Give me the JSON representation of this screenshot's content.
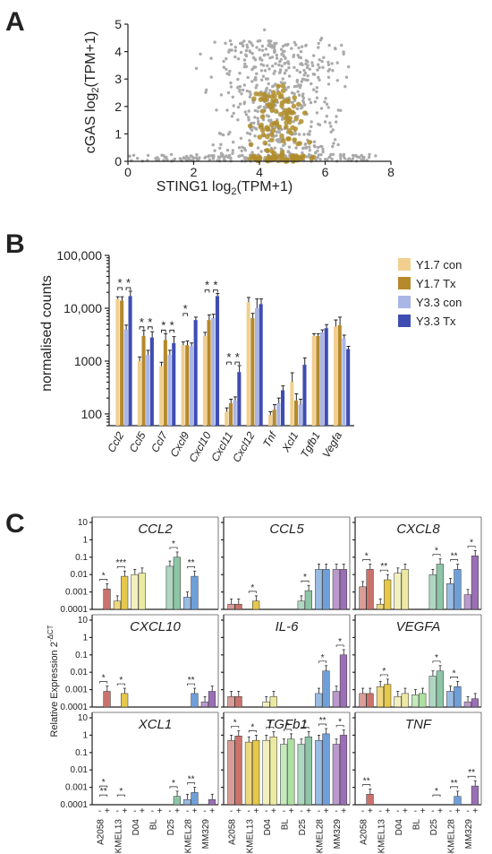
{
  "chart_data": [
    {
      "panel": "A",
      "type": "scatter",
      "xlabel_main": "STING1 log",
      "xlabel_sub": "2",
      "xlabel_end": "(TPM+1)",
      "ylabel_main": "cGAS log",
      "ylabel_sub": "2",
      "ylabel_end": "(TPM+1)",
      "xlim": [
        0,
        8
      ],
      "ylim": [
        0,
        5
      ],
      "xticks": [
        "0",
        "2",
        "4",
        "6",
        "8"
      ],
      "yticks": [
        "0",
        "1",
        "2",
        "3",
        "4",
        "5"
      ],
      "colors": {
        "background": "#aaaaaa",
        "highlight": "#b08d2a"
      },
      "grey_count": 700,
      "gold_count": 140
    },
    {
      "panel": "B",
      "type": "bar",
      "ylabel": "normalised counts",
      "yscale": "log",
      "ylim": [
        60,
        100000
      ],
      "yticks": [
        "100",
        "1000",
        "10,000",
        "100,000"
      ],
      "ytick_values": [
        100,
        1000,
        10000,
        100000
      ],
      "categories": [
        "Ccl2",
        "Ccl5",
        "Ccl7",
        "Cxcl9",
        "Cxcl10",
        "Cxcl11",
        "Cxcl12",
        "Tnf",
        "Xcl1",
        "Tgfb1",
        "Vegfa"
      ],
      "series": [
        {
          "name": "Y1.7 con",
          "color": "#f1cf8f",
          "values": [
            15000,
            1000,
            800,
            2000,
            3000,
            110,
            13000,
            95,
            400,
            3000,
            4500
          ],
          "errors": [
            1500,
            200,
            150,
            300,
            500,
            20,
            3000,
            15,
            200,
            300,
            1500
          ]
        },
        {
          "name": "Y1.7 Tx",
          "color": "#b5892c",
          "values": [
            14000,
            3000,
            2500,
            2000,
            6000,
            160,
            6500,
            120,
            180,
            3000,
            4800
          ],
          "errors": [
            2500,
            800,
            800,
            400,
            1500,
            30,
            1500,
            30,
            60,
            300,
            2000
          ]
        },
        {
          "name": "Y3.3 con",
          "color": "#a9b5e6",
          "values": [
            4000,
            1300,
            1300,
            1900,
            6500,
            180,
            10000,
            160,
            150,
            3500,
            2700
          ],
          "errors": [
            800,
            300,
            300,
            300,
            1200,
            30,
            5000,
            40,
            40,
            400,
            400
          ]
        },
        {
          "name": "Y3.3 Tx",
          "color": "#3f4db3",
          "values": [
            17000,
            2800,
            2200,
            6000,
            17000,
            620,
            12000,
            280,
            850,
            4200,
            1700
          ],
          "errors": [
            4000,
            800,
            700,
            800,
            2000,
            200,
            3000,
            60,
            300,
            700,
            200
          ]
        }
      ],
      "significance": [
        {
          "category": "Ccl2",
          "pairs": [
            "*",
            "*"
          ]
        },
        {
          "category": "Ccl5",
          "pairs": [
            "*",
            "*"
          ]
        },
        {
          "category": "Ccl7",
          "pairs": [
            "*",
            "*"
          ]
        },
        {
          "category": "Cxcl9",
          "pairs": [
            "*"
          ]
        },
        {
          "category": "Cxcl10",
          "pairs": [
            "*",
            "*"
          ]
        },
        {
          "category": "Cxcl11",
          "pairs": [
            "*",
            "*"
          ]
        }
      ]
    },
    {
      "panel": "C",
      "type": "bar",
      "ylabel": "Relative Expression 2",
      "ylabel_sup": "-ΔCT",
      "yscale": "log",
      "ylim": [
        0.0001,
        10
      ],
      "yticks": [
        "10",
        "1",
        "0.1",
        "0.01",
        "0.001",
        "0.0001"
      ],
      "ytick_values": [
        10,
        1,
        0.1,
        0.01,
        0.001,
        0.0001
      ],
      "xtick_signs": [
        "-",
        "+"
      ],
      "cell_lines": [
        "A2058",
        "SKMEL13",
        "D04",
        "BL",
        "D25",
        "SKMEL28",
        "MM329"
      ],
      "cell_colors": [
        "#c9736c",
        "#e6c84a",
        "#ece9a2",
        "#aee0a2",
        "#8dc6a6",
        "#6f9fd8",
        "#9b6fb5"
      ],
      "genes": [
        {
          "name": "CCL2",
          "minus": [
            0.0001,
            0.0003,
            0.01,
            0.0001,
            0.03,
            0.0005,
            0.0001
          ],
          "plus": [
            0.0015,
            0.008,
            0.012,
            0.0001,
            0.1,
            0.008,
            0.0001
          ],
          "stars": [
            {
              "pair": 0,
              "label": "*"
            },
            {
              "pair": 1,
              "label": "***"
            },
            {
              "pair": 4,
              "label": "*"
            },
            {
              "pair": 5,
              "label": "**"
            }
          ]
        },
        {
          "name": "CCL5",
          "minus": [
            0.0002,
            0.0001,
            0.0001,
            0.0001,
            0.0003,
            0.02,
            0.02
          ],
          "plus": [
            0.0002,
            0.0003,
            0.0001,
            0.0001,
            0.0012,
            0.02,
            0.02
          ],
          "stars": [
            {
              "pair": 1,
              "label": "*"
            },
            {
              "pair": 4,
              "label": "*"
            }
          ]
        },
        {
          "name": "CXCL8",
          "minus": [
            0.002,
            0.0002,
            0.012,
            0.0001,
            0.01,
            0.003,
            0.0007
          ],
          "plus": [
            0.02,
            0.005,
            0.02,
            0.0001,
            0.04,
            0.02,
            0.12
          ],
          "stars": [
            {
              "pair": 0,
              "label": "*"
            },
            {
              "pair": 1,
              "label": "**"
            },
            {
              "pair": 4,
              "label": "*"
            },
            {
              "pair": 5,
              "label": "**"
            },
            {
              "pair": 6,
              "label": "*"
            }
          ]
        },
        {
          "name": "CXCL10",
          "minus": [
            0.0001,
            0.0001,
            0.0001,
            0.0001,
            0.0001,
            0.0001,
            0.0002
          ],
          "plus": [
            0.0008,
            0.0006,
            0.0001,
            0.0001,
            0.0001,
            0.0006,
            0.0008
          ],
          "stars": [
            {
              "pair": 0,
              "label": "*"
            },
            {
              "pair": 1,
              "label": "*"
            },
            {
              "pair": 5,
              "label": "**"
            }
          ]
        },
        {
          "name": "IL-6",
          "minus": [
            0.0004,
            0.0001,
            0.0002,
            0.0001,
            0.0001,
            0.0006,
            0.0008
          ],
          "plus": [
            0.0004,
            0.0001,
            0.0004,
            0.0001,
            0.0001,
            0.012,
            0.1
          ],
          "stars": [
            {
              "pair": 5,
              "label": "*"
            },
            {
              "pair": 6,
              "label": "*"
            }
          ]
        },
        {
          "name": "VEGFA",
          "minus": [
            0.0006,
            0.0015,
            0.0004,
            0.0005,
            0.006,
            0.0008,
            0.0002
          ],
          "plus": [
            0.0006,
            0.002,
            0.0006,
            0.0006,
            0.012,
            0.0015,
            0.0003
          ],
          "stars": [
            {
              "pair": 1,
              "label": "*"
            },
            {
              "pair": 4,
              "label": "*"
            },
            {
              "pair": 5,
              "label": "*"
            }
          ]
        },
        {
          "name": "XCL1",
          "minus": [
            0.0001,
            0.0001,
            0.0001,
            0.0001,
            0.0001,
            0.0002,
            0.0001
          ],
          "plus": [
            0.0001,
            0.0001,
            0.0001,
            0.0001,
            0.0003,
            0.0005,
            0.0002
          ],
          "stars": [
            {
              "pair": 0,
              "label": "**"
            },
            {
              "pair": 0,
              "label": "*"
            },
            {
              "pair": 1,
              "label": "*"
            },
            {
              "pair": 4,
              "label": "*"
            },
            {
              "pair": 5,
              "label": "**"
            }
          ]
        },
        {
          "name": "TGFb1",
          "minus": [
            0.5,
            0.4,
            0.5,
            0.3,
            0.3,
            0.5,
            0.3
          ],
          "plus": [
            0.9,
            0.5,
            0.8,
            0.6,
            0.8,
            1.2,
            1.0
          ],
          "stars": [
            {
              "pair": 0,
              "label": "*"
            },
            {
              "pair": 1,
              "label": "*"
            },
            {
              "pair": 2,
              "label": "*"
            },
            {
              "pair": 3,
              "label": "*"
            },
            {
              "pair": 4,
              "label": "*"
            },
            {
              "pair": 5,
              "label": "**"
            },
            {
              "pair": 6,
              "label": "*"
            }
          ]
        },
        {
          "name": "TNF",
          "minus": [
            0.0001,
            0.0001,
            0.0001,
            0.0001,
            0.0001,
            0.0001,
            0.0001
          ],
          "plus": [
            0.0004,
            0.0001,
            0.0001,
            0.0001,
            0.0001,
            0.0003,
            0.0012
          ],
          "stars": [
            {
              "pair": 0,
              "label": "**"
            },
            {
              "pair": 4,
              "label": "*"
            },
            {
              "pair": 5,
              "label": "**"
            },
            {
              "pair": 6,
              "label": "**"
            }
          ]
        }
      ]
    }
  ],
  "panel_letters": {
    "a": "A",
    "b": "B",
    "c": "C"
  }
}
